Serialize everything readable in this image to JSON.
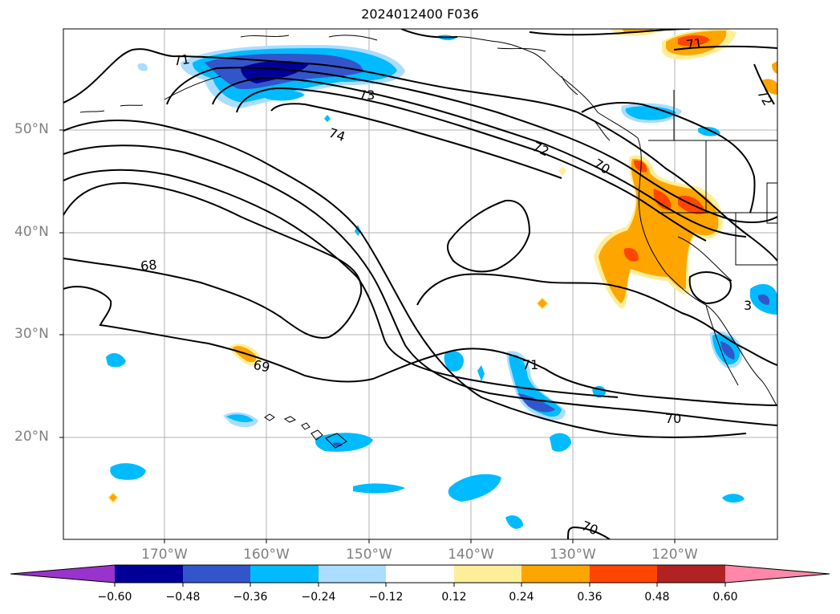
{
  "title": "2024012400 F036",
  "map": {
    "lat_labels": [
      "50°N",
      "40°N",
      "30°N",
      "20°N"
    ],
    "lon_labels": [
      "170°W",
      "160°W",
      "150°W",
      "140°W",
      "130°W",
      "120°W"
    ],
    "contour_labels": [
      "71",
      "73",
      "74",
      "72",
      "70",
      "68",
      "69",
      "71",
      "70",
      "70",
      "71",
      "72",
      "3"
    ]
  },
  "colorbar": {
    "colors": [
      "#9933cc",
      "#000099",
      "#3355cc",
      "#00bbff",
      "#aaddff",
      "#ffffff",
      "#ffee99",
      "#ffa500",
      "#ff4500",
      "#b22222",
      "#ff88aa"
    ],
    "tick_labels": [
      "−0.60",
      "−0.48",
      "−0.36",
      "−0.24",
      "−0.12",
      "0.12",
      "0.24",
      "0.36",
      "0.48",
      "0.60"
    ]
  }
}
